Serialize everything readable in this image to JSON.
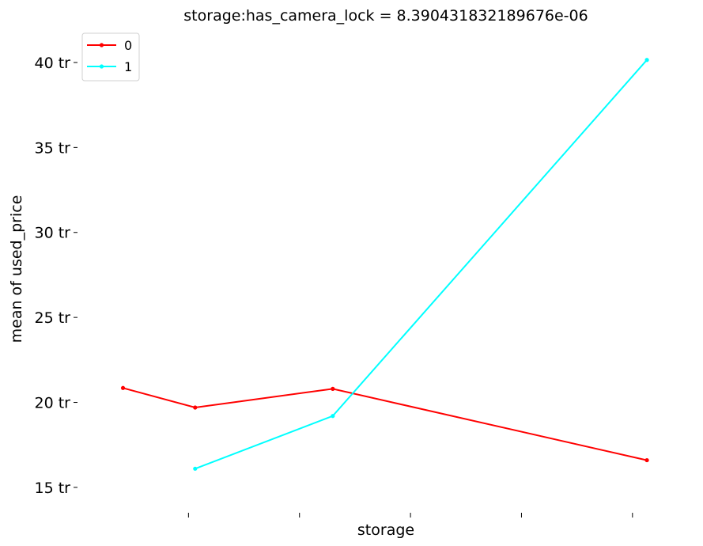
{
  "chart_data": {
    "type": "line",
    "title": "storage:has_camera_lock = 8.390431832189676e-06",
    "xlabel": "storage",
    "ylabel": "mean of used_price",
    "xlim": [
      0,
      5.5
    ],
    "ylim": [
      13.6,
      42.0
    ],
    "y_ticks": [
      {
        "value": 15,
        "label": "15 tr"
      },
      {
        "value": 20,
        "label": "20 tr"
      },
      {
        "value": 25,
        "label": "25 tr"
      },
      {
        "value": 30,
        "label": "30 tr"
      },
      {
        "value": 35,
        "label": "35 tr"
      },
      {
        "value": 40,
        "label": "40 tr"
      }
    ],
    "x_ticks": [
      1,
      2,
      3,
      4,
      5
    ],
    "grid": false,
    "legend_position": "top-left",
    "series": [
      {
        "name": "0",
        "color": "#ff0000",
        "points": [
          {
            "x": 0.41,
            "y": 20.85
          },
          {
            "x": 1.06,
            "y": 19.7
          },
          {
            "x": 2.3,
            "y": 20.8
          },
          {
            "x": 5.13,
            "y": 16.6
          }
        ]
      },
      {
        "name": "1",
        "color": "#00ffff",
        "points": [
          {
            "x": 1.06,
            "y": 16.1
          },
          {
            "x": 2.3,
            "y": 19.2
          },
          {
            "x": 5.13,
            "y": 40.15
          }
        ]
      }
    ]
  }
}
